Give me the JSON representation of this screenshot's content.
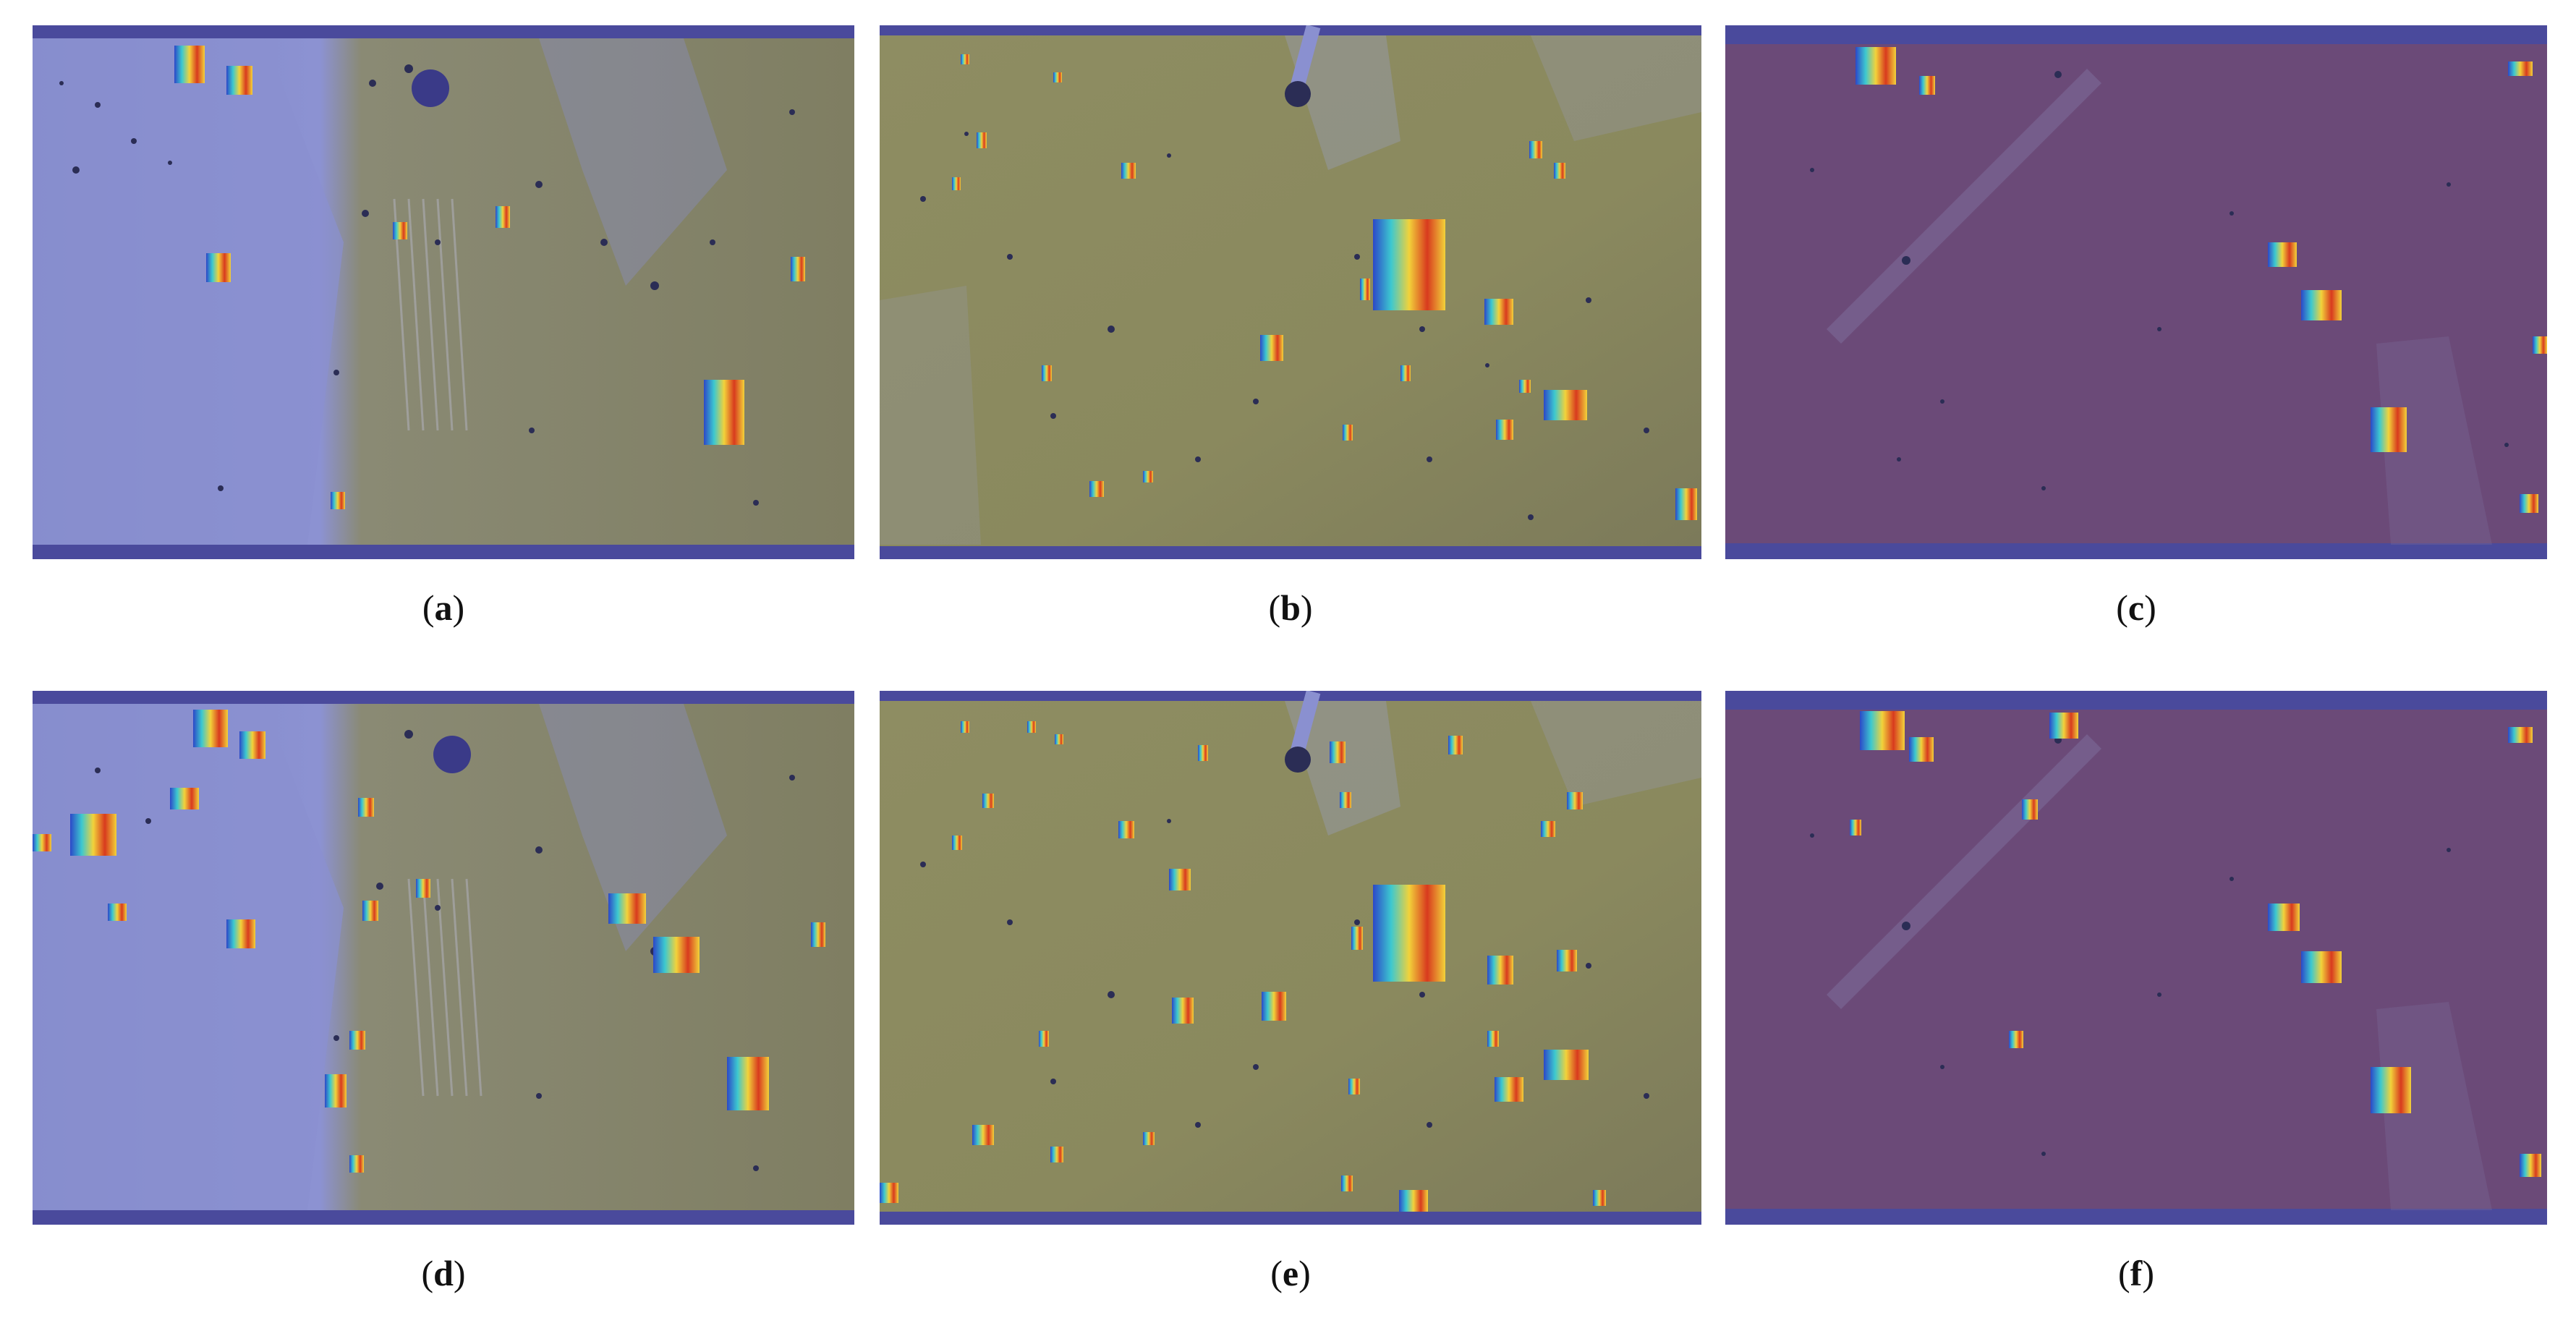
{
  "figure": {
    "panels": [
      {
        "id": "a",
        "label": "a",
        "theme": "blue"
      },
      {
        "id": "b",
        "label": "b",
        "theme": "olive"
      },
      {
        "id": "c",
        "label": "c",
        "theme": "purple"
      },
      {
        "id": "d",
        "label": "d",
        "theme": "blue"
      },
      {
        "id": "e",
        "label": "e",
        "theme": "olive"
      },
      {
        "id": "f",
        "label": "f",
        "theme": "purple"
      }
    ],
    "colors": {
      "frame_band": "#4a4a9c",
      "blue_board": "#7f86c6",
      "blue_wash": "#8a90d0",
      "olive_board": "#8b8a5e",
      "purple_board": "#6b4a78",
      "heat_red": "#d83a1e",
      "heat_yellow": "#f2d23a",
      "heat_cyan": "#3cc8d0",
      "heat_blue": "#2c48c8",
      "insect": "#2b2d55"
    }
  }
}
